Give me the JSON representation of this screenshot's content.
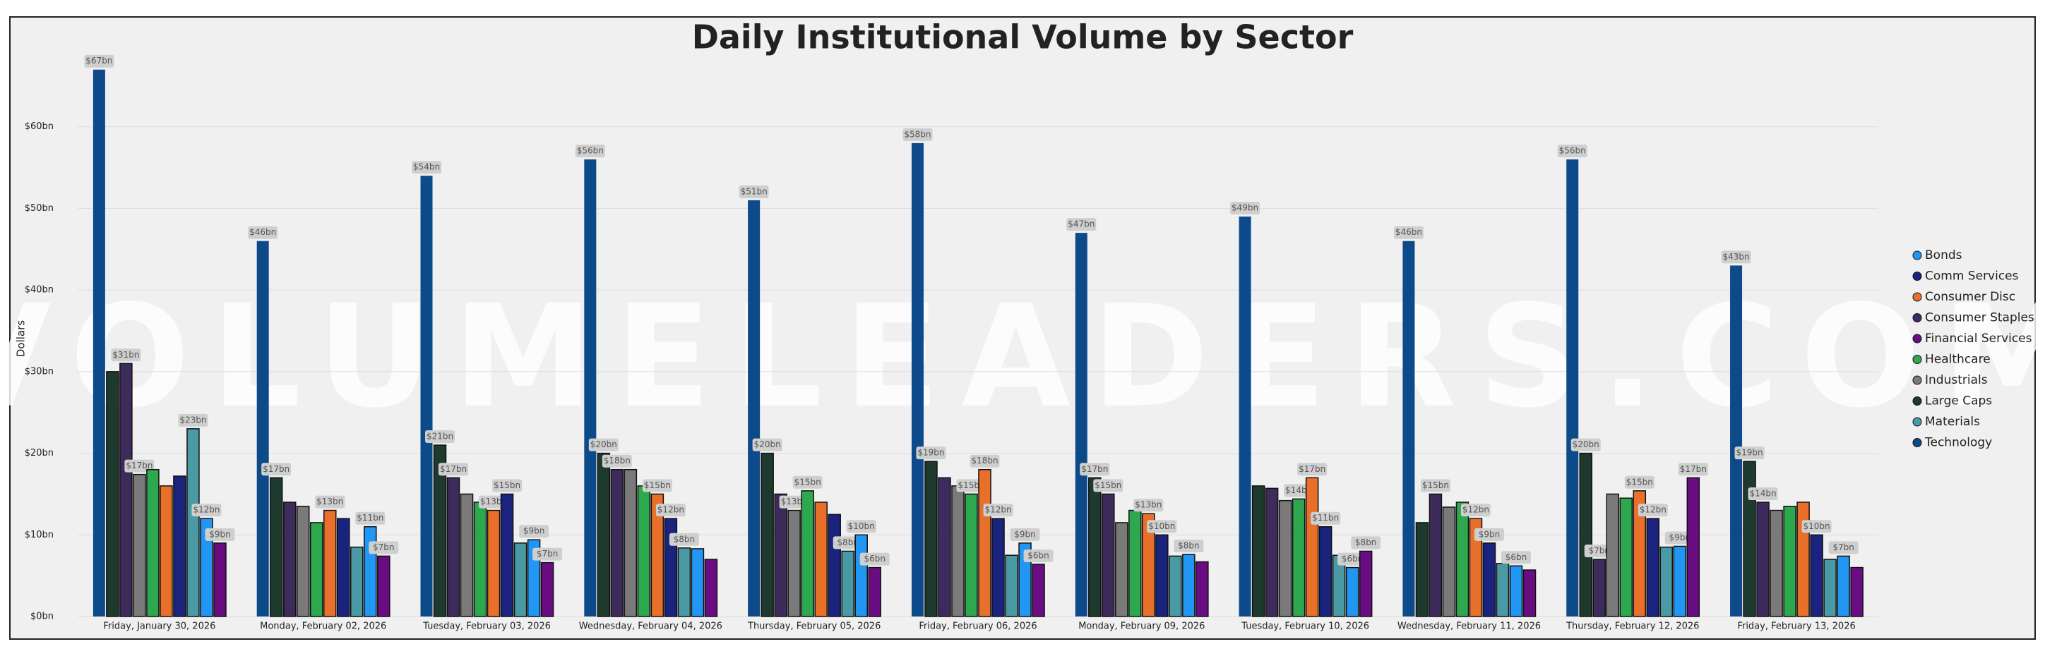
{
  "chart_data": {
    "type": "bar",
    "title": "Daily Institutional Volume by Sector",
    "watermark": "VOLUMELEADERS.COM",
    "y_label": "Dollars",
    "categories": [
      "Friday, January 30, 2026",
      "Monday, February 02, 2026",
      "Tuesday, February 03, 2026",
      "Wednesday, February 04, 2026",
      "Thursday, February 05, 2026",
      "Friday, February 06, 2026",
      "Monday, February 09, 2026",
      "Tuesday, February 10, 2026",
      "Wednesday, February 11, 2026",
      "Thursday, February 12, 2026",
      "Friday, February 13, 2026"
    ],
    "series": [
      {
        "name": "Technology",
        "color": "#0d4a8a",
        "values": [
          67,
          46,
          54,
          56,
          51,
          58,
          47,
          49,
          46,
          56,
          43
        ],
        "value_labels": [
          "$67bn",
          "$46bn",
          "$54bn",
          "$56bn",
          "$51bn",
          "$58bn",
          "$47bn",
          "$49bn",
          "$46bn",
          "$56bn",
          "$43bn"
        ]
      },
      {
        "name": "Large Caps",
        "color": "#1e3a2f",
        "values": [
          30,
          17,
          21,
          20,
          20,
          19,
          17,
          16,
          11.5,
          20,
          19
        ],
        "value_labels": [
          null,
          "$17bn",
          "$21bn",
          "$20bn",
          "$20bn",
          "$19bn",
          "$17bn",
          null,
          null,
          "$20bn",
          "$19bn"
        ]
      },
      {
        "name": "Consumer Staples",
        "color": "#3d2b5c",
        "values": [
          31,
          14,
          17,
          18,
          15,
          17,
          15,
          15.7,
          15,
          7,
          14
        ],
        "value_labels": [
          "$31bn",
          null,
          "$17bn",
          "$18bn",
          null,
          null,
          "$15bn",
          null,
          "$15bn",
          "$7bn",
          "$14bn"
        ]
      },
      {
        "name": "Industrials",
        "color": "#7a7a7a",
        "values": [
          17.4,
          13.5,
          15,
          18,
          13,
          16,
          11.5,
          14.2,
          13.4,
          15,
          13
        ],
        "value_labels": [
          "$17bn",
          null,
          null,
          null,
          "$13bn",
          null,
          null,
          null,
          null,
          null,
          null
        ]
      },
      {
        "name": "Healthcare",
        "color": "#2ea84f",
        "values": [
          18,
          11.5,
          14,
          16,
          15.4,
          15,
          13,
          14.4,
          14,
          14.5,
          13.5
        ],
        "value_labels": [
          null,
          null,
          null,
          null,
          "$15bn",
          "$15bn",
          null,
          "$14bn",
          null,
          null,
          null
        ]
      },
      {
        "name": "Consumer Disc",
        "color": "#e8702a",
        "values": [
          16,
          13,
          13,
          15,
          14,
          18,
          12.6,
          17,
          12,
          15.4,
          14
        ],
        "value_labels": [
          null,
          "$13bn",
          "$13bn",
          "$15bn",
          null,
          "$18bn",
          "$13bn",
          "$17bn",
          "$12bn",
          "$15bn",
          null
        ]
      },
      {
        "name": "Comm Services",
        "color": "#1a237e",
        "values": [
          17.2,
          12,
          15,
          12,
          12.5,
          12,
          10,
          11,
          9,
          12,
          10
        ],
        "value_labels": [
          null,
          null,
          "$15bn",
          "$12bn",
          null,
          "$12bn",
          "$10bn",
          "$11bn",
          "$9bn",
          "$12bn",
          "$10bn"
        ]
      },
      {
        "name": "Materials",
        "color": "#4a9aa5",
        "values": [
          23,
          8.5,
          9,
          8.4,
          8,
          7.5,
          7.4,
          7.5,
          6.5,
          8.5,
          7
        ],
        "value_labels": [
          "$23bn",
          null,
          null,
          "$8bn",
          "$8bn",
          null,
          null,
          null,
          null,
          null,
          null
        ]
      },
      {
        "name": "Bonds",
        "color": "#2196f3",
        "values": [
          12,
          11,
          9.4,
          8.3,
          10,
          9,
          7.6,
          6,
          6.2,
          8.6,
          7.4
        ],
        "value_labels": [
          "$12bn",
          "$11bn",
          "$9bn",
          null,
          "$10bn",
          "$9bn",
          "$8bn",
          "$6bn",
          "$6bn",
          "$9bn",
          "$7bn"
        ]
      },
      {
        "name": "Financial Services",
        "color": "#6a0d83",
        "values": [
          9,
          7.4,
          6.6,
          7,
          6,
          6.4,
          6.7,
          8,
          5.7,
          17,
          6
        ],
        "value_labels": [
          "$9bn",
          "$7bn",
          "$7bn",
          null,
          "$6bn",
          "$6bn",
          null,
          "$8bn",
          null,
          "$17bn",
          null
        ]
      }
    ],
    "legend_order": [
      8,
      6,
      5,
      2,
      9,
      4,
      3,
      1,
      7,
      0
    ],
    "ylim": [
      0,
      70
    ],
    "yticks": [
      {
        "value": 0,
        "label": "$0bn"
      },
      {
        "value": 10,
        "label": "$10bn"
      },
      {
        "value": 20,
        "label": "$20bn"
      },
      {
        "value": 30,
        "label": "$30bn"
      },
      {
        "value": 40,
        "label": "$40bn"
      },
      {
        "value": 50,
        "label": "$50bn"
      },
      {
        "value": 60,
        "label": "$60bn"
      }
    ],
    "grid": true,
    "legend": "right"
  }
}
